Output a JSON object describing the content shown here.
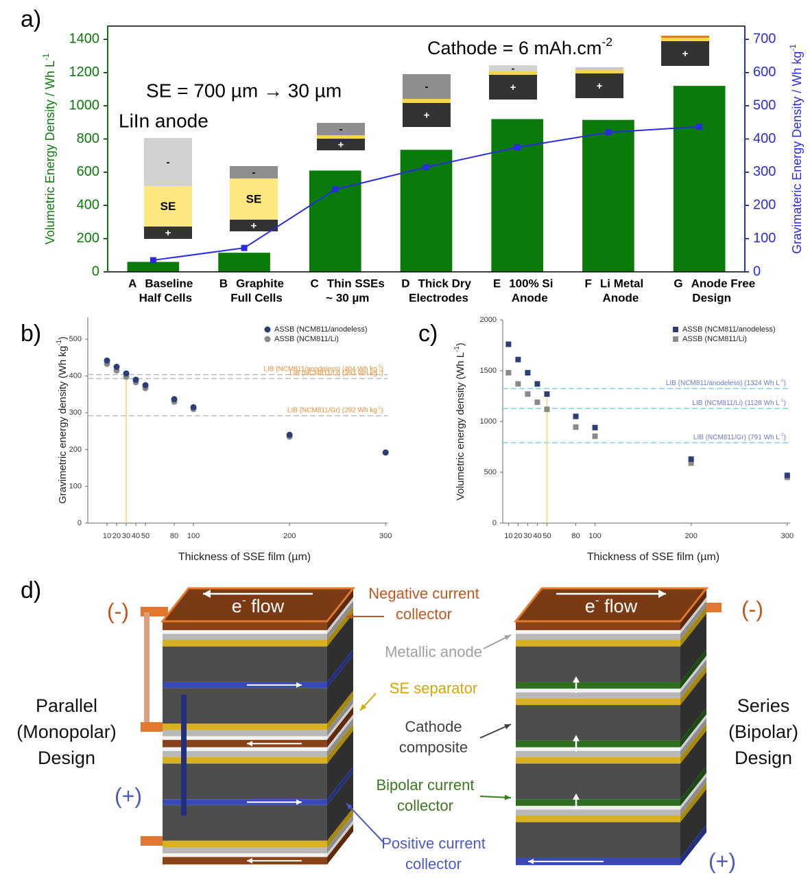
{
  "panel_labels": [
    "a)",
    "b)",
    "c)",
    "d)"
  ],
  "chart_data": [
    {
      "type": "bar_line",
      "categories": [
        [
          "A",
          "Baseline",
          "Half Cells"
        ],
        [
          "B",
          "Graphite",
          "Full Cells"
        ],
        [
          "C",
          "Thin SSEs",
          "~ 30 µm"
        ],
        [
          "D",
          "Thick Dry",
          "Electrodes"
        ],
        [
          "E",
          "100% Si",
          "Anode"
        ],
        [
          "F",
          "Li Metal",
          "Anode"
        ],
        [
          "G",
          "Anode Free",
          "Design"
        ]
      ],
      "series": [
        {
          "color": "#0a7a0a",
          "values": [
            60,
            115,
            610,
            735,
            920,
            915,
            1120
          ]
        },
        {
          "color": "#2a2ae0",
          "axis": "y2",
          "values": [
            35,
            72,
            248,
            315,
            375,
            420,
            437
          ]
        }
      ],
      "ylim": [
        0,
        1480
      ],
      "yticks": [
        0,
        200,
        400,
        600,
        800,
        1000,
        1200,
        1400
      ],
      "y2lim": [
        0,
        740
      ],
      "y2ticks": [
        0,
        100,
        200,
        300,
        400,
        500,
        600,
        700
      ],
      "ylabel": {
        "text": "Volumetric Energy Density / Wh L",
        "sup": "-1"
      },
      "y2label": {
        "text": "Gravimateric Energy Density / Wh kg",
        "sup": "-1"
      },
      "annotations": {
        "anode": "LiIn anode",
        "se": "SE = 700 µm → 30 µm",
        "cathode": {
          "text": "Cathode = 6 mAh.cm",
          "sup": "-2"
        }
      },
      "schematic_labels": {
        "minus": "-",
        "plus": "+",
        "se": "SE"
      }
    },
    {
      "type": "scatter",
      "marker": "circle",
      "x": [
        10,
        20,
        30,
        40,
        50,
        80,
        100,
        200,
        300
      ],
      "series": [
        {
          "name": "ASSB (NCM811/anodeless)",
          "color": "#2c3e73",
          "values": [
            442,
            425,
            407,
            390,
            375,
            337,
            315,
            240,
            192
          ]
        },
        {
          "name": "ASSB (NCM811/Li)",
          "color": "#8a8a8a",
          "values": [
            433,
            415,
            398,
            383,
            367,
            330,
            310,
            235,
            192
          ]
        }
      ],
      "xlim": [
        -10,
        302
      ],
      "xticks": [
        10,
        20,
        30,
        40,
        50,
        80,
        100,
        200,
        300
      ],
      "ylim": [
        0,
        560
      ],
      "yticks": [
        0,
        100,
        200,
        300,
        400,
        500
      ],
      "xlabel": {
        "text": "Thickness of SSE film (µm)"
      },
      "ylabel": {
        "text": "Gravimetric energy density (Wh kg",
        "sup": "-1",
        "end": ")"
      },
      "highlight_x": 30,
      "highlight_color": "#f2d66a",
      "ref_color": "#bbbbbb",
      "ref_label_color": "#f08a30",
      "reference_lines": [
        {
          "value": 404,
          "text": "LIB (NCM811/anodeless) (404 Wh kg",
          "sup": "-1",
          "end": ")"
        },
        {
          "value": 393,
          "text": "LIB (NCM811/Li) (393 Wh kg",
          "sup": "-1",
          "end": ")"
        },
        {
          "value": 292,
          "text": "LIB (NCM811/Gr) (292 Wh kg",
          "sup": "-1",
          "end": ")"
        }
      ]
    },
    {
      "type": "scatter",
      "marker": "square",
      "x": [
        10,
        20,
        30,
        40,
        50,
        80,
        100,
        200,
        300
      ],
      "series": [
        {
          "name": "ASSB (NCM811/anodeless)",
          "color": "#2c3e73",
          "values": [
            1760,
            1610,
            1480,
            1370,
            1270,
            1050,
            940,
            630,
            470
          ]
        },
        {
          "name": "ASSB (NCM811/Li)",
          "color": "#8a8a8a",
          "values": [
            1480,
            1370,
            1270,
            1190,
            1120,
            945,
            855,
            590,
            450
          ]
        }
      ],
      "xlim": [
        4,
        303
      ],
      "xticks": [
        10,
        20,
        30,
        40,
        50,
        80,
        100,
        200,
        300
      ],
      "ylim": [
        0,
        2000
      ],
      "yticks": [
        0,
        500,
        1000,
        1500,
        2000
      ],
      "xlabel": {
        "text": "Thickness of SSE film (µm)"
      },
      "ylabel": {
        "text": "Volumetric energy density (Wh L",
        "sup": "-1",
        "end": ")"
      },
      "highlight_x": 50,
      "highlight_color": "#f2d66a",
      "ref_color": "#7fd3e3",
      "ref_label_color": "#6a78c8",
      "reference_lines": [
        {
          "value": 1324,
          "text": "LIB (NCM811/anodeless) (1324 Wh L",
          "sup": "-1",
          "end": ")"
        },
        {
          "value": 1128,
          "text": "LIB (NCM811/Li) (1128 Wh L",
          "sup": "-1",
          "end": ")"
        },
        {
          "value": 791,
          "text": "LIB (NCM811/Gr) (791 Wh L",
          "sup": "-1",
          "end": ")"
        }
      ]
    }
  ],
  "diagram": {
    "e_flow": [
      "e",
      "-",
      " flow"
    ],
    "terminals": {
      "negative": "(-)",
      "positive": "(+)"
    },
    "terminal_colors": {
      "negative": "#c0581e",
      "positive": "#4a58c8"
    },
    "designs": [
      {
        "lines": [
          "Parallel",
          "(Monopolar)",
          "Design"
        ]
      },
      {
        "lines": [
          "Series",
          "(Bipolar)",
          "Design"
        ]
      }
    ],
    "callouts": [
      {
        "lines": [
          "Negative current",
          "collector"
        ],
        "color": "#c0581e"
      },
      {
        "lines": [
          "Metallic anode"
        ],
        "color": "#a0a0a0"
      },
      {
        "lines": [
          "SE separator"
        ],
        "color": "#d4a800"
      },
      {
        "lines": [
          "Cathode",
          "composite"
        ],
        "color": "#404040"
      },
      {
        "lines": [
          "Bipolar current",
          "collector"
        ],
        "color": "#3a7a1e"
      },
      {
        "lines": [
          "Positive current",
          "collector"
        ],
        "color": "#4a58c8"
      }
    ]
  }
}
